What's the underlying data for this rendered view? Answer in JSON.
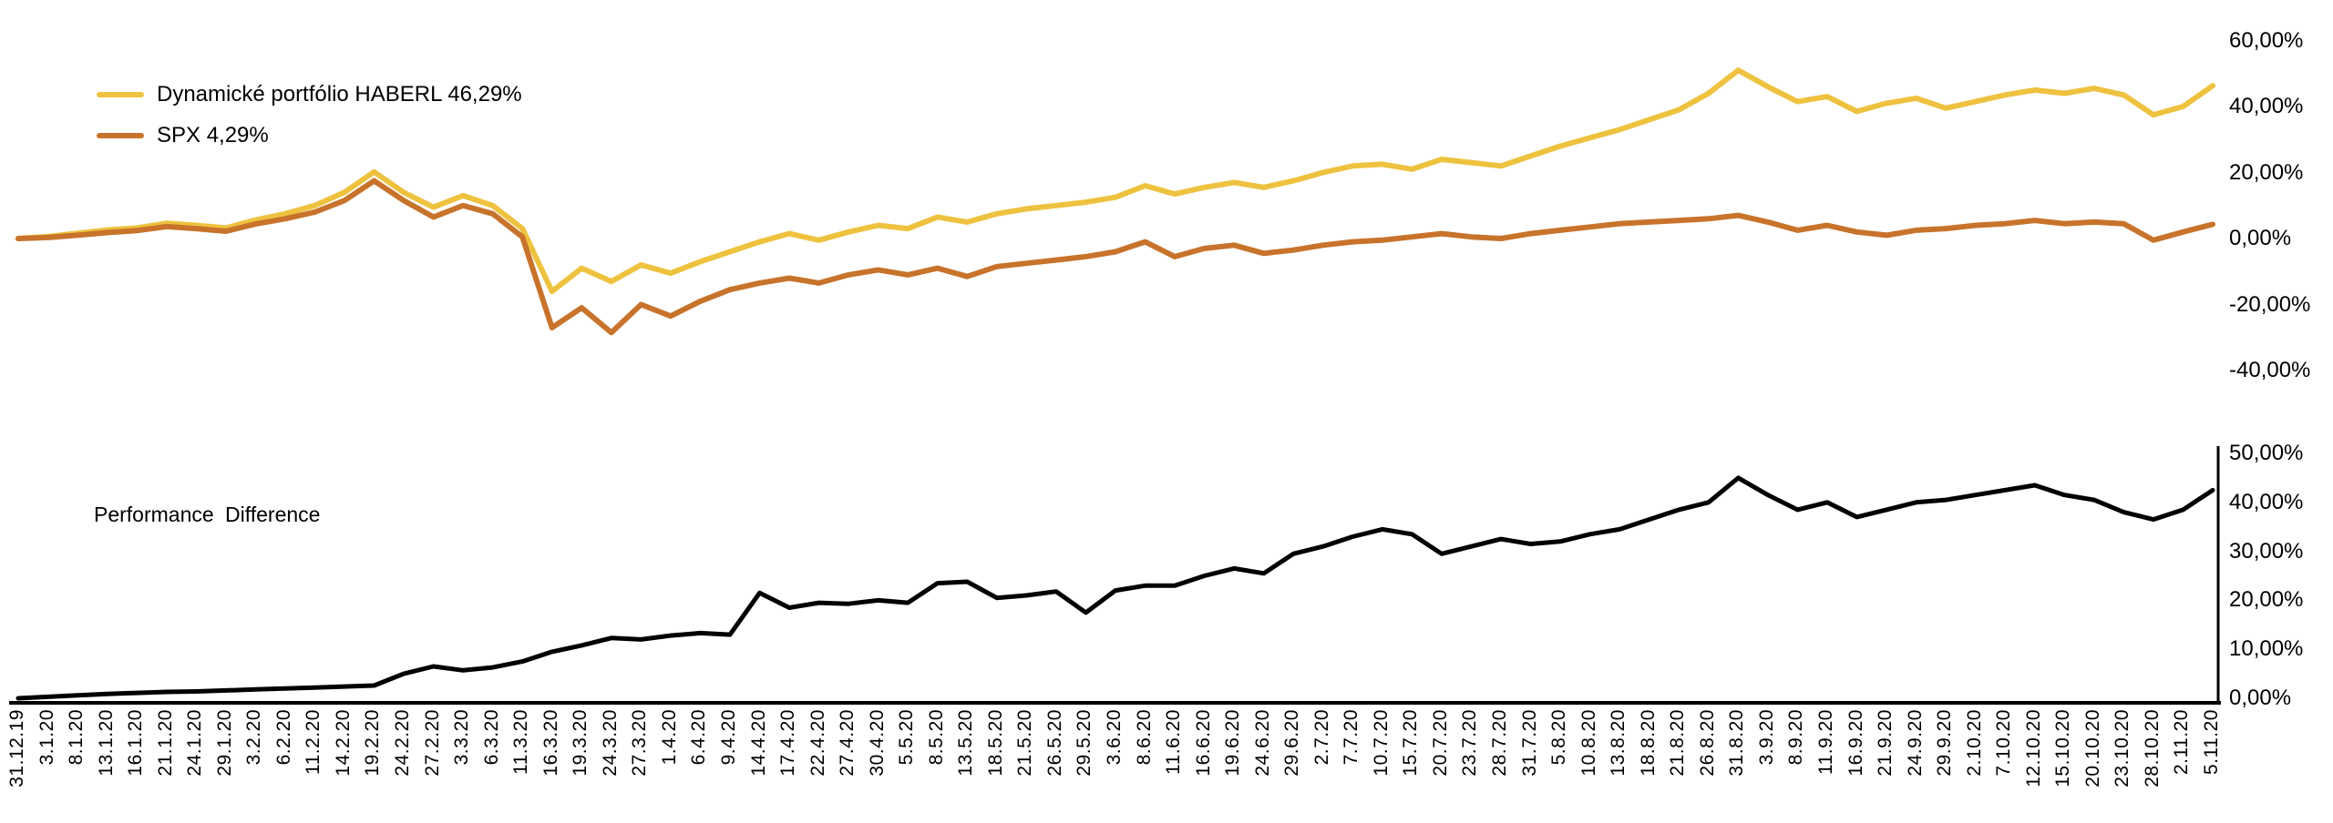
{
  "legend": {
    "items": [
      {
        "label": "Dynamické portfólio HABERL 46,29%",
        "color": "#EEC23F"
      },
      {
        "label": "SPX 4,29%",
        "color": "#C8732B"
      }
    ]
  },
  "bottom_panel_label": "Performance Difference",
  "colors": {
    "haberl": "#EEC23F",
    "spx": "#C8732B",
    "difference": "#000000",
    "axis": "#000000"
  },
  "chart_data": [
    {
      "type": "line",
      "panel": "top",
      "title": "",
      "legend_position": "top-left",
      "grid": false,
      "ylim": [
        -40,
        60
      ],
      "yticks": [
        {
          "value": 60,
          "label": "60,00%"
        },
        {
          "value": 40,
          "label": "40,00%"
        },
        {
          "value": 20,
          "label": "20,00%"
        },
        {
          "value": 0,
          "label": "0,00%"
        },
        {
          "value": -20,
          "label": "-20,00%"
        },
        {
          "value": -40,
          "label": "-40,00%"
        }
      ],
      "x_labels": [
        "31.12.19",
        "3.1.20",
        "8.1.20",
        "13.1.20",
        "16.1.20",
        "21.1.20",
        "24.1.20",
        "29.1.20",
        "3.2.20",
        "6.2.20",
        "11.2.20",
        "14.2.20",
        "19.2.20",
        "24.2.20",
        "27.2.20",
        "3.3.20",
        "6.3.20",
        "11.3.20",
        "16.3.20",
        "19.3.20",
        "24.3.20",
        "27.3.20",
        "1.4.20",
        "6.4.20",
        "9.4.20",
        "14.4.20",
        "17.4.20",
        "22.4.20",
        "27.4.20",
        "30.4.20",
        "5.5.20",
        "8.5.20",
        "13.5.20",
        "18.5.20",
        "21.5.20",
        "26.5.20",
        "29.5.20",
        "3.6.20",
        "8.6.20",
        "11.6.20",
        "16.6.20",
        "19.6.20",
        "24.6.20",
        "29.6.20",
        "2.7.20",
        "7.7.20",
        "10.7.20",
        "15.7.20",
        "20.7.20",
        "23.7.20",
        "28.7.20",
        "31.7.20",
        "5.8.20",
        "10.8.20",
        "13.8.20",
        "18.8.20",
        "21.8.20",
        "26.8.20",
        "31.8.20",
        "3.9.20",
        "8.9.20",
        "11.9.20",
        "16.9.20",
        "21.9.20",
        "24.9.20",
        "29.9.20",
        "2.10.20",
        "7.10.20",
        "12.10.20",
        "15.10.20",
        "20.10.20",
        "23.10.20",
        "28.10.20",
        "2.11.20",
        "5.11.20"
      ],
      "series": [
        {
          "name": "Dynamické portfólio HABERL",
          "final_value_label": "46,29%",
          "color": "#EEC23F",
          "values": [
            0,
            0.6,
            1.6,
            2.6,
            3.2,
            4.6,
            4.0,
            3.2,
            5.6,
            7.5,
            10.0,
            14.0,
            20.2,
            14.0,
            9.5,
            13.0,
            10.0,
            3.0,
            -16.0,
            -9.0,
            -13.0,
            -8.0,
            -10.5,
            -7.0,
            -4.0,
            -1.0,
            1.5,
            -0.5,
            2.0,
            4.0,
            3.0,
            6.5,
            5.0,
            7.5,
            9.0,
            10.0,
            11.0,
            12.5,
            16.0,
            13.5,
            15.5,
            17.0,
            15.5,
            17.5,
            20.0,
            22.0,
            22.5,
            21.0,
            24.0,
            23.0,
            22.0,
            25.0,
            28.0,
            30.5,
            33.0,
            36.0,
            39.0,
            44.0,
            51.0,
            46.0,
            41.5,
            43.0,
            38.5,
            41.0,
            42.5,
            39.5,
            41.5,
            43.5,
            45.0,
            44.0,
            45.5,
            43.5,
            37.5,
            40.0,
            46.29
          ]
        },
        {
          "name": "SPX",
          "final_value_label": "4,29%",
          "color": "#C8732B",
          "values": [
            0,
            0.3,
            1.0,
            1.8,
            2.4,
            3.6,
            3.0,
            2.2,
            4.4,
            6.0,
            8.0,
            11.5,
            17.5,
            11.5,
            6.5,
            10.0,
            7.5,
            0.5,
            -27.0,
            -21.0,
            -28.5,
            -20.0,
            -23.5,
            -19.0,
            -15.5,
            -13.5,
            -12.0,
            -13.5,
            -11.0,
            -9.5,
            -11.0,
            -9.0,
            -11.5,
            -8.5,
            -7.5,
            -6.5,
            -5.5,
            -4.0,
            -1.0,
            -5.5,
            -3.0,
            -2.0,
            -4.5,
            -3.5,
            -2.0,
            -1.0,
            -0.5,
            0.5,
            1.5,
            0.5,
            0.0,
            1.5,
            2.5,
            3.5,
            4.5,
            5.0,
            5.5,
            6.0,
            7.0,
            5.0,
            2.5,
            4.0,
            2.0,
            1.0,
            2.5,
            3.0,
            4.0,
            4.5,
            5.5,
            4.5,
            5.0,
            4.5,
            -0.5,
            2.0,
            4.29
          ]
        }
      ]
    },
    {
      "type": "line",
      "panel": "bottom",
      "title": "Performance Difference",
      "grid": false,
      "ylim": [
        0,
        50
      ],
      "x_labels_shared_with_top_panel": true,
      "yticks": [
        {
          "value": 50,
          "label": "50,00%"
        },
        {
          "value": 40,
          "label": "40,00%"
        },
        {
          "value": 30,
          "label": "30,00%"
        },
        {
          "value": 20,
          "label": "20,00%"
        },
        {
          "value": 10,
          "label": "10,00%"
        },
        {
          "value": 0,
          "label": "0,00%"
        }
      ],
      "series": [
        {
          "name": "Performance Difference",
          "color": "#000000",
          "values": [
            0,
            0.3,
            0.6,
            0.9,
            1.1,
            1.3,
            1.4,
            1.6,
            1.8,
            2.0,
            2.2,
            2.4,
            2.6,
            5.0,
            6.5,
            5.7,
            6.3,
            7.5,
            9.5,
            10.8,
            12.3,
            12.0,
            12.8,
            13.3,
            13.0,
            21.5,
            18.5,
            19.5,
            19.3,
            20.0,
            19.5,
            23.5,
            23.8,
            20.5,
            21.0,
            21.8,
            17.5,
            22.0,
            23.0,
            23.0,
            25.0,
            26.5,
            25.5,
            29.5,
            31.0,
            33.0,
            34.5,
            33.5,
            29.5,
            31.0,
            32.5,
            31.5,
            32.0,
            33.5,
            34.5,
            36.5,
            38.5,
            40.0,
            45.0,
            41.5,
            38.5,
            40.0,
            37.0,
            38.5,
            40.0,
            40.5,
            41.5,
            42.5,
            43.5,
            41.5,
            40.5,
            38.0,
            36.5,
            38.5,
            42.5
          ]
        }
      ]
    }
  ]
}
